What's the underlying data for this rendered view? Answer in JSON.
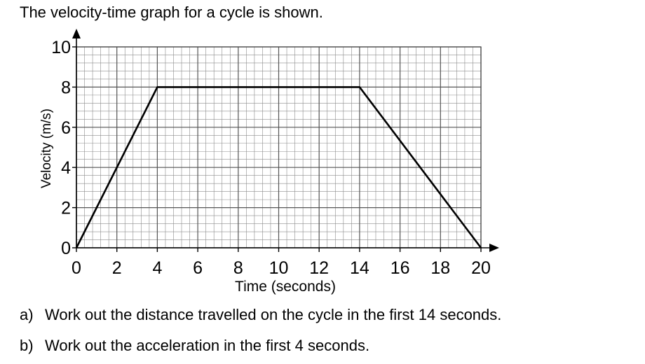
{
  "intro": "The velocity-time graph for a cycle is shown.",
  "questions": [
    {
      "letter": "a)",
      "text": "Work out the distance travelled on the cycle in the first 14 seconds."
    },
    {
      "letter": "b)",
      "text": "Work out the acceleration in the first 4 seconds."
    }
  ],
  "chart_data": {
    "type": "line",
    "title": "",
    "xlabel": "Time (seconds)",
    "ylabel": "Velocity (m/s)",
    "xlim": [
      0,
      20
    ],
    "ylim": [
      0,
      10
    ],
    "xticks": [
      0,
      2,
      4,
      6,
      8,
      10,
      12,
      14,
      16,
      18,
      20
    ],
    "yticks": [
      0,
      2,
      4,
      6,
      8,
      10
    ],
    "minor_grid_step": 0.4,
    "grid": true,
    "series": [
      {
        "x": [
          0,
          4,
          14,
          20
        ],
        "y": [
          0,
          8,
          8,
          0
        ]
      }
    ],
    "line_color": "#000000",
    "grid_color": "#8c8c8c"
  }
}
